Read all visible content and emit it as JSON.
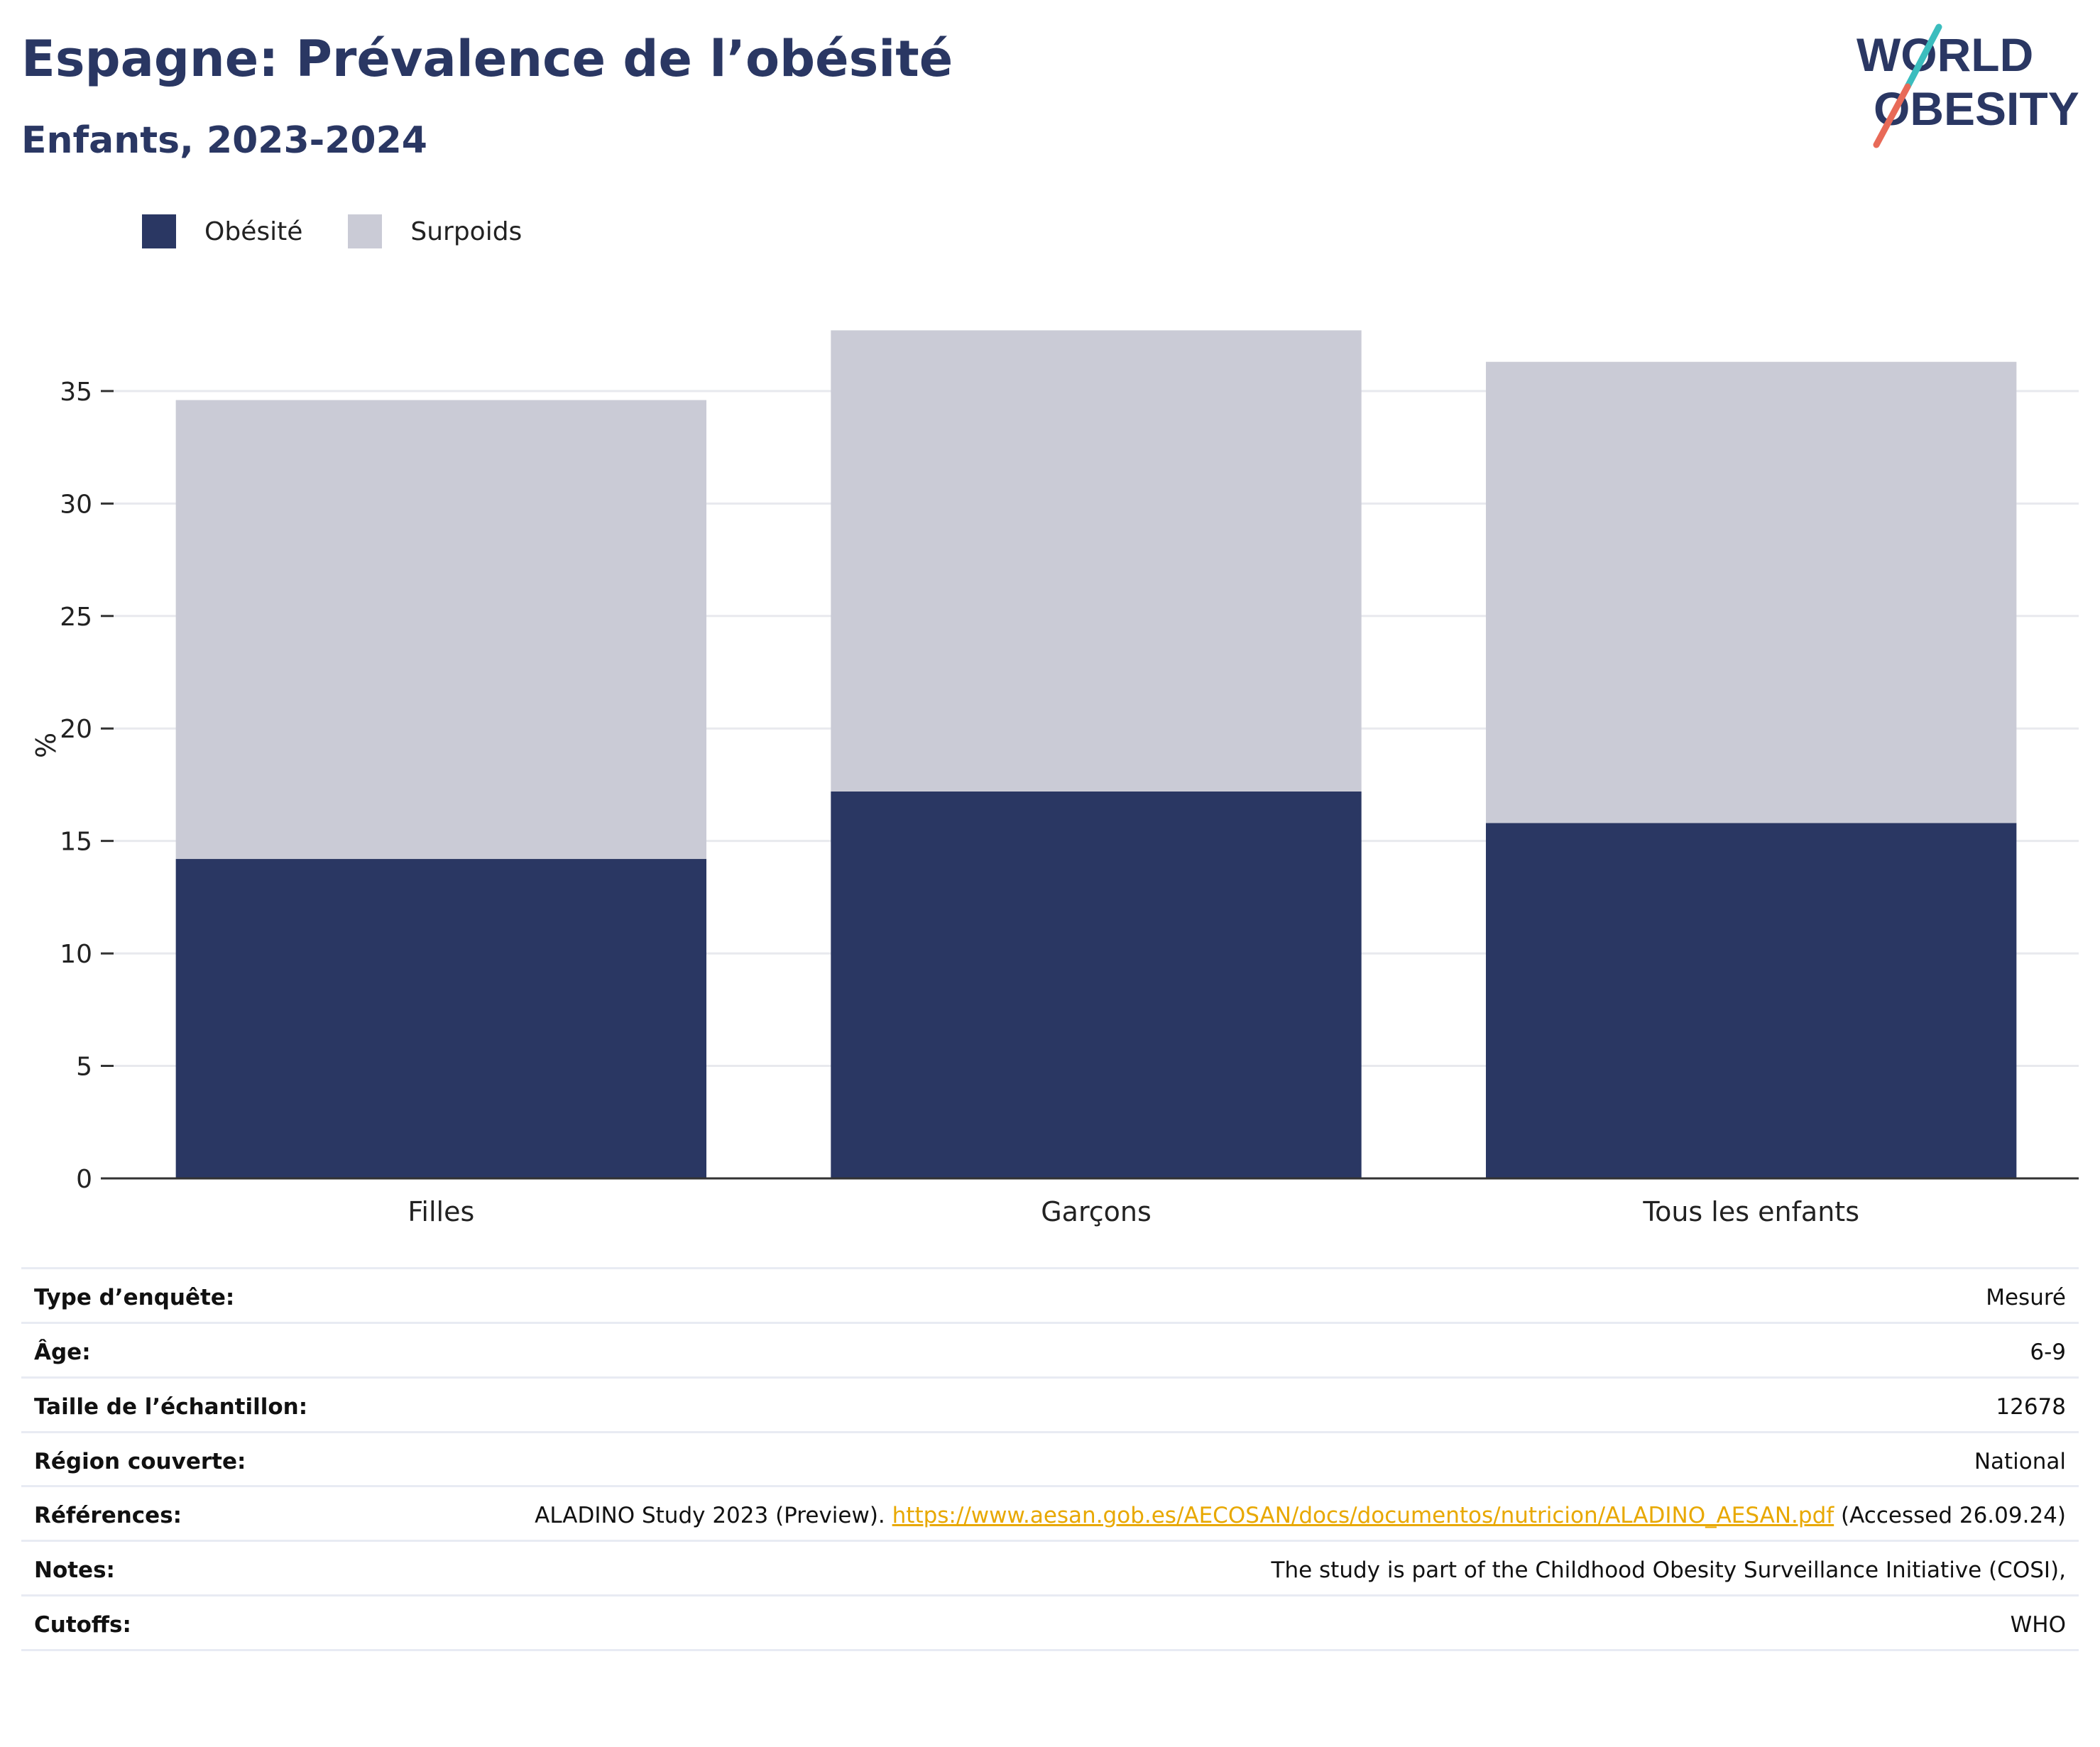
{
  "title": "Espagne: Prévalence de l’obésité",
  "subtitle": "Enfants, 2023-2024",
  "logo": {
    "line1": "WORLD",
    "line2": "OBESITY"
  },
  "colors": {
    "obesity": "#2a3763",
    "overweight": "#cacbd6",
    "title": "#2a3763",
    "link": "#e8a800",
    "logo_teal": "#3bbdbe",
    "logo_coral": "#e86a58"
  },
  "legend": {
    "position": "top-left",
    "items": [
      {
        "label": "Obésité",
        "color": "#2a3763"
      },
      {
        "label": "Surpoids",
        "color": "#cacbd6"
      }
    ]
  },
  "chart_data": {
    "type": "bar",
    "stacked": true,
    "categories": [
      "Filles",
      "Garçons",
      "Tous les enfants"
    ],
    "series": [
      {
        "name": "Obésité",
        "values": [
          14.2,
          17.2,
          15.8
        ]
      },
      {
        "name": "Surpoids",
        "values": [
          20.4,
          20.5,
          20.5
        ]
      }
    ],
    "ylabel": "%",
    "xlabel": "",
    "ylim": [
      0,
      38.5
    ],
    "yticks": [
      0,
      5,
      10,
      15,
      20,
      25,
      30,
      35
    ],
    "grid": true
  },
  "info": {
    "survey_type": {
      "label": "Type d’enquête:",
      "value": "Mesuré"
    },
    "age": {
      "label": "Âge:",
      "value": "6-9"
    },
    "sample_size": {
      "label": "Taille de l’échantillon:",
      "value": "12678"
    },
    "region": {
      "label": "Région couverte:",
      "value": "National"
    },
    "references": {
      "label": "Références:",
      "text_before": "ALADINO Study 2023 (Preview). ",
      "link": "https://www.aesan.gob.es/AECOSAN/docs/documentos/nutricion/ALADINO_AESAN.pdf",
      "text_after": " (Accessed 26.09.24)"
    },
    "notes": {
      "label": "Notes:",
      "value": "The study is part of the Childhood Obesity Surveillance Initiative (COSI),"
    },
    "cutoffs": {
      "label": "Cutoffs:",
      "value": "WHO"
    }
  }
}
